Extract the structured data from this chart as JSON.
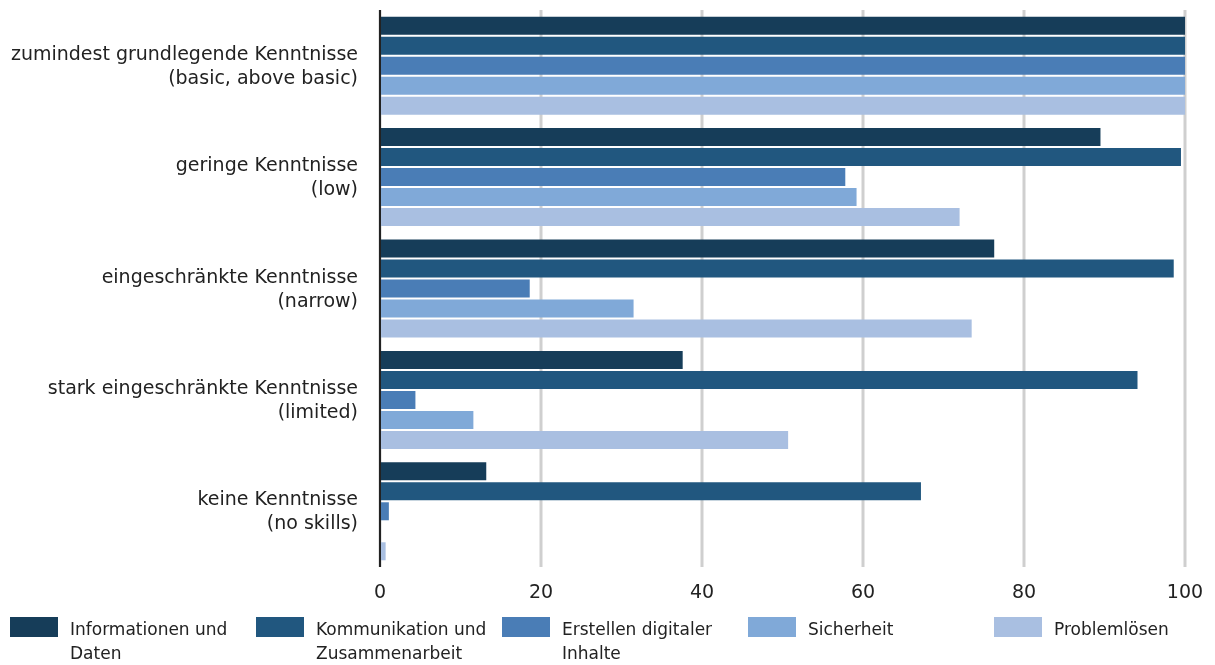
{
  "chart_data": {
    "type": "bar",
    "orientation": "horizontal",
    "categories": [
      "zumindest grundlegende Kenntnisse (basic, above basic)",
      "geringe Kenntnisse (low)",
      "eingeschränkte Kenntnisse (narrow)",
      "stark eingeschränkte Kenntnisse (limited)",
      "keine Kenntnisse (no skills)"
    ],
    "series": [
      {
        "name": "Informationen und Daten",
        "color": "#163d59",
        "values": [
          100,
          89.5,
          76.3,
          37.6,
          13.2
        ]
      },
      {
        "name": "Kommunikation und Zusammenarbeit",
        "color": "#21577f",
        "values": [
          100,
          99.5,
          98.6,
          94.1,
          67.2
        ]
      },
      {
        "name": "Erstellen digitaler Inhalte",
        "color": "#4a7db6",
        "values": [
          100,
          57.8,
          18.6,
          4.4,
          1.1
        ]
      },
      {
        "name": "Sicherheit",
        "color": "#80a9d8",
        "values": [
          100,
          59.2,
          31.5,
          11.6,
          0
        ]
      },
      {
        "name": "Problemlösen",
        "color": "#a9bfe1",
        "values": [
          100,
          72,
          73.5,
          50.7,
          0.7
        ]
      }
    ],
    "xlim": [
      0,
      100
    ],
    "xticks": [
      0,
      20,
      40,
      60,
      80,
      100
    ],
    "grid": "x",
    "legend": "bottom"
  }
}
